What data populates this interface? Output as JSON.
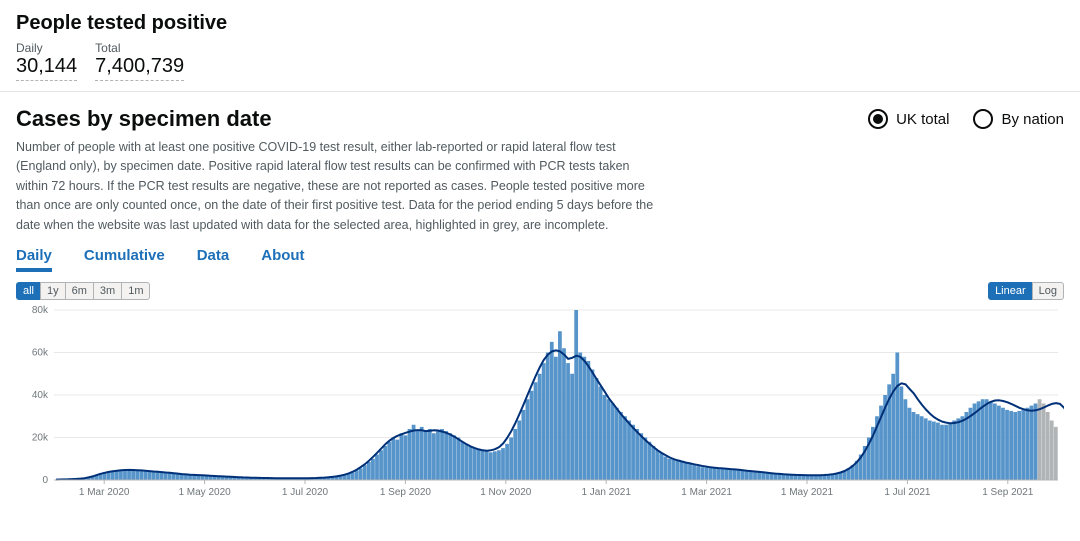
{
  "header": {
    "title": "People tested positive",
    "daily_label": "Daily",
    "daily_value": "30,144",
    "total_label": "Total",
    "total_value": "7,400,739"
  },
  "panel": {
    "title": "Cases by specimen date",
    "radios": {
      "uk_total": "UK total",
      "by_nation": "By nation",
      "selected": "uk_total"
    },
    "description": "Number of people with at least one positive COVID-19 test result, either lab-reported or rapid lateral flow test (England only), by specimen date. Positive rapid lateral flow test results can be confirmed with PCR tests taken within 72 hours. If the PCR test results are negative, these are not reported as cases. People tested positive more than once are only counted once, on the date of their first positive test. Data for the period ending 5 days before the date when the website was last updated with data for the selected area, highlighted in grey, are incomplete."
  },
  "tabs": {
    "daily": "Daily",
    "cumulative": "Cumulative",
    "data": "Data",
    "about": "About",
    "active": "daily"
  },
  "range_buttons": {
    "all": "all",
    "y1": "1y",
    "m6": "6m",
    "m3": "3m",
    "m1": "1m",
    "active": "all"
  },
  "scale_buttons": {
    "linear": "Linear",
    "log": "Log",
    "active": "linear"
  },
  "chart": {
    "type": "bar+line",
    "ylim": [
      0,
      80000
    ],
    "yticks": [
      0,
      20000,
      40000,
      60000,
      80000
    ],
    "ytick_labels": [
      "0",
      "20k",
      "40k",
      "60k",
      "80k"
    ],
    "xtick_labels": [
      "1 Mar 2020",
      "1 May 2020",
      "1 Jul 2020",
      "1 Sep 2020",
      "1 Nov 2020",
      "1 Jan 2021",
      "1 Mar 2021",
      "1 May 2021",
      "1 Jul 2021",
      "1 Sep 2021"
    ],
    "bar_color": "#5694ca",
    "incomplete_bar_color": "#b1b4b6",
    "line_color": "#003078",
    "line_width": 2,
    "grid_color": "#e8e8e8",
    "axis_color": "#b1b4b6",
    "label_color": "#6f777b",
    "label_fontsize": 10,
    "background_color": "#ffffff",
    "bars": [
      200,
      250,
      300,
      350,
      400,
      500,
      600,
      800,
      1200,
      1800,
      2500,
      3200,
      3800,
      4200,
      4500,
      4700,
      4800,
      4900,
      4800,
      4700,
      4600,
      4500,
      4400,
      4200,
      4000,
      3800,
      3700,
      3600,
      3400,
      3200,
      3000,
      2800,
      2600,
      2500,
      2400,
      2300,
      2200,
      2100,
      2000,
      1900,
      1800,
      1700,
      1600,
      1500,
      1400,
      1300,
      1200,
      1150,
      1100,
      1050,
      1000,
      950,
      900,
      900,
      850,
      850,
      800,
      800,
      800,
      800,
      800,
      800,
      850,
      900,
      950,
      1000,
      1100,
      1200,
      1300,
      1500,
      1800,
      2200,
      2800,
      3500,
      4500,
      5500,
      7000,
      8500,
      10000,
      12000,
      14000,
      16000,
      18000,
      20000,
      19000,
      22000,
      21000,
      24000,
      26000,
      23000,
      25000,
      23000,
      24000,
      22000,
      23000,
      24000,
      23000,
      22000,
      21000,
      20000,
      18000,
      17000,
      16000,
      15000,
      14500,
      14000,
      13500,
      13000,
      13500,
      14000,
      15000,
      17000,
      20000,
      24000,
      28000,
      33000,
      38000,
      42000,
      46000,
      50000,
      55000,
      60000,
      65000,
      58000,
      70000,
      62000,
      55000,
      50000,
      80000,
      60000,
      58000,
      56000,
      52000,
      48000,
      44000,
      40000,
      38000,
      36000,
      34000,
      32000,
      30000,
      28000,
      26000,
      24000,
      22000,
      20000,
      18000,
      16000,
      14000,
      12500,
      11000,
      10000,
      9500,
      9000,
      8500,
      8000,
      7500,
      7000,
      6500,
      6000,
      5800,
      5600,
      5500,
      5300,
      5200,
      5100,
      5000,
      4800,
      4600,
      4400,
      4200,
      4000,
      3800,
      3600,
      3400,
      3200,
      3000,
      2800,
      2600,
      2500,
      2400,
      2350,
      2300,
      2300,
      2250,
      2200,
      2200,
      2250,
      2300,
      2400,
      2600,
      2800,
      3200,
      3800,
      4500,
      5500,
      7000,
      9000,
      12000,
      16000,
      20000,
      25000,
      30000,
      35000,
      40000,
      45000,
      50000,
      60000,
      44000,
      38000,
      34000,
      32000,
      31000,
      30000,
      29000,
      28000,
      27500,
      27000,
      26000,
      26000,
      27000,
      28000,
      29000,
      30000,
      32000,
      34000,
      36000,
      37000,
      38000,
      38000,
      37000,
      36000,
      35000,
      34000,
      33000,
      32500,
      32000,
      32500,
      33000,
      34000,
      35000,
      36000,
      38000,
      36000,
      32000,
      28000,
      25000
    ],
    "incomplete_count": 5,
    "line": [
      200,
      250,
      300,
      350,
      420,
      520,
      650,
      850,
      1200,
      1700,
      2300,
      2900,
      3400,
      3800,
      4100,
      4400,
      4600,
      4700,
      4750,
      4700,
      4600,
      4500,
      4350,
      4200,
      4000,
      3850,
      3700,
      3550,
      3400,
      3200,
      3000,
      2800,
      2650,
      2500,
      2400,
      2300,
      2200,
      2100,
      2000,
      1900,
      1800,
      1700,
      1600,
      1500,
      1400,
      1300,
      1220,
      1160,
      1100,
      1050,
      1000,
      960,
      920,
      900,
      870,
      850,
      820,
      810,
      800,
      800,
      810,
      820,
      850,
      900,
      960,
      1050,
      1150,
      1280,
      1450,
      1700,
      2050,
      2500,
      3100,
      3900,
      4900,
      6100,
      7500,
      9100,
      10900,
      12800,
      14800,
      16800,
      18500,
      19800,
      20800,
      21500,
      22200,
      22800,
      23300,
      23500,
      23400,
      23000,
      23200,
      23400,
      23300,
      22800,
      22200,
      21400,
      20400,
      19200,
      18000,
      16800,
      15800,
      15000,
      14400,
      14000,
      13800,
      14000,
      14500,
      15500,
      17200,
      19800,
      23000,
      26800,
      31000,
      35500,
      40000,
      44500,
      49000,
      53000,
      56500,
      59000,
      60500,
      61000,
      60500,
      59000,
      57000,
      57500,
      58500,
      58000,
      56000,
      53500,
      50500,
      47500,
      44500,
      41500,
      38500,
      36000,
      33500,
      31000,
      28800,
      26600,
      24500,
      22500,
      20600,
      18800,
      17100,
      15500,
      14000,
      12700,
      11600,
      10600,
      9800,
      9200,
      8700,
      8200,
      7800,
      7400,
      7000,
      6600,
      6300,
      6000,
      5800,
      5600,
      5450,
      5300,
      5150,
      5000,
      4800,
      4600,
      4400,
      4200,
      4000,
      3800,
      3600,
      3400,
      3200,
      3000,
      2850,
      2700,
      2580,
      2480,
      2400,
      2340,
      2300,
      2270,
      2250,
      2250,
      2280,
      2350,
      2480,
      2700,
      3050,
      3550,
      4250,
      5250,
      6600,
      8400,
      10700,
      13600,
      17100,
      21000,
      25300,
      29800,
      34200,
      38300,
      41800,
      44300,
      45500,
      45000,
      42800,
      40800,
      38000,
      35500,
      33200,
      31200,
      29600,
      28400,
      27500,
      27000,
      26700,
      26800,
      27200,
      27900,
      28900,
      30100,
      31500,
      33000,
      34500,
      35800,
      36800,
      37400,
      37500,
      37200,
      36600,
      35800,
      34900,
      34000,
      33300,
      32800,
      32600,
      32800,
      33300,
      34100,
      35000,
      35800,
      36200,
      35800,
      34000,
      31000,
      27500
    ]
  }
}
